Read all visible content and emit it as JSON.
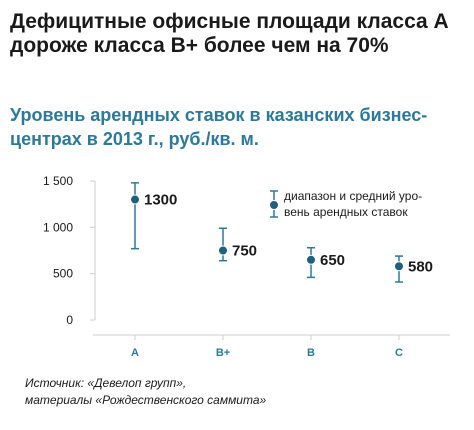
{
  "title": "Дефицитные офисные площади класса А дороже класса В+ более чем на 70%",
  "subtitle": "Уровень арендных ставок в казанских бизнес-центрах в 2013 г., руб./кв. м.",
  "source_lines": [
    "Источник: «Девелоп групп»,",
    "материалы «Рождественского саммита»"
  ],
  "colors": {
    "accent": "#2b7a9e",
    "marker": "#1f5f80",
    "grid": "#cccccc",
    "text": "#1a1a1a"
  },
  "chart_data": {
    "type": "scatter",
    "categories": [
      "A",
      "B+",
      "B",
      "C"
    ],
    "values": [
      1300,
      750,
      650,
      580
    ],
    "ranges": [
      [
        770,
        1480
      ],
      [
        640,
        990
      ],
      [
        460,
        780
      ],
      [
        410,
        690
      ]
    ],
    "value_labels": [
      "1300",
      "750",
      "650",
      "580"
    ],
    "yticks": [
      0,
      500,
      1000,
      1500
    ],
    "ytick_labels": [
      "0",
      "500",
      "1 000",
      "1 500"
    ],
    "ylim": [
      0,
      1500
    ],
    "legend": {
      "text_lines": [
        "диапазон и средний уро-",
        "вень арендных ставок"
      ],
      "position": "top-right"
    },
    "grid": false
  }
}
